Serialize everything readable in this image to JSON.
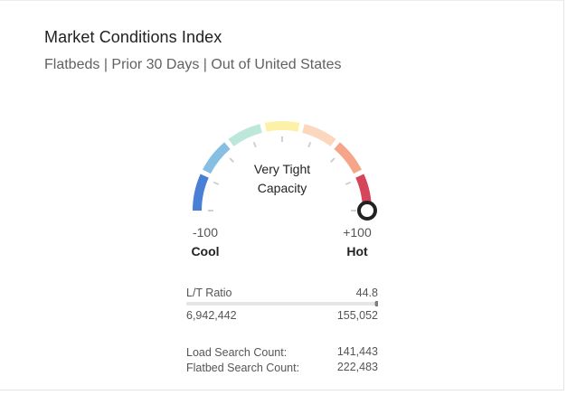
{
  "card": {
    "title": "Market Conditions Index",
    "subtitle": "Flatbeds | Prior 30 Days | Out of United States"
  },
  "gauge": {
    "status_line1": "Very Tight",
    "status_line2": "Capacity",
    "min_value": "-100",
    "max_value": "+100",
    "min_label": "Cool",
    "max_label": "Hot",
    "indicator_value": 100,
    "segment_colors": [
      "#4a7fd6",
      "#86bfe2",
      "#bde7da",
      "#fdf1a8",
      "#fbd7bd",
      "#f5a58a",
      "#d6455a"
    ],
    "indicator_color": "#222222"
  },
  "stats": {
    "lt_ratio_label": "L/T Ratio",
    "lt_ratio_value": "44.8",
    "loads_count": "6,942,442",
    "trucks_count": "155,052",
    "ratio_bar_fraction": 0.02,
    "load_search_label": "Load Search Count:",
    "load_search_value": "141,443",
    "flatbed_search_label": "Flatbed Search Count:",
    "flatbed_search_value": "222,483"
  }
}
